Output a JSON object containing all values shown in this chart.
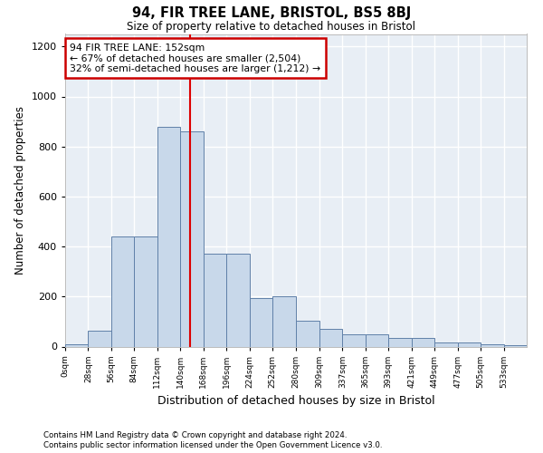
{
  "title1": "94, FIR TREE LANE, BRISTOL, BS5 8BJ",
  "title2": "Size of property relative to detached houses in Bristol",
  "xlabel": "Distribution of detached houses by size in Bristol",
  "ylabel": "Number of detached properties",
  "bar_edges": [
    0,
    28,
    56,
    84,
    112,
    140,
    168,
    196,
    224,
    252,
    280,
    309,
    337,
    365,
    393,
    421,
    449,
    477,
    505,
    533,
    561
  ],
  "bar_heights": [
    10,
    65,
    440,
    440,
    880,
    860,
    370,
    370,
    195,
    200,
    105,
    70,
    50,
    50,
    35,
    35,
    15,
    15,
    10,
    5,
    0
  ],
  "bar_color": "#c8d8ea",
  "bar_edge_color": "#6080a8",
  "background_color": "#e8eef5",
  "grid_color": "#ffffff",
  "annotation_line1": "94 FIR TREE LANE: 152sqm",
  "annotation_line2": "← 67% of detached houses are smaller (2,504)",
  "annotation_line3": "32% of semi-detached houses are larger (1,212) →",
  "red_line_x": 152,
  "red_line_color": "#dd0000",
  "annotation_box_color": "#cc0000",
  "ylim": [
    0,
    1250
  ],
  "yticks": [
    0,
    200,
    400,
    600,
    800,
    1000,
    1200
  ],
  "xlim_min": 0,
  "xlim_max": 561,
  "fig_width": 6.0,
  "fig_height": 5.0,
  "dpi": 100,
  "footnote1": "Contains HM Land Registry data © Crown copyright and database right 2024.",
  "footnote2": "Contains public sector information licensed under the Open Government Licence v3.0."
}
